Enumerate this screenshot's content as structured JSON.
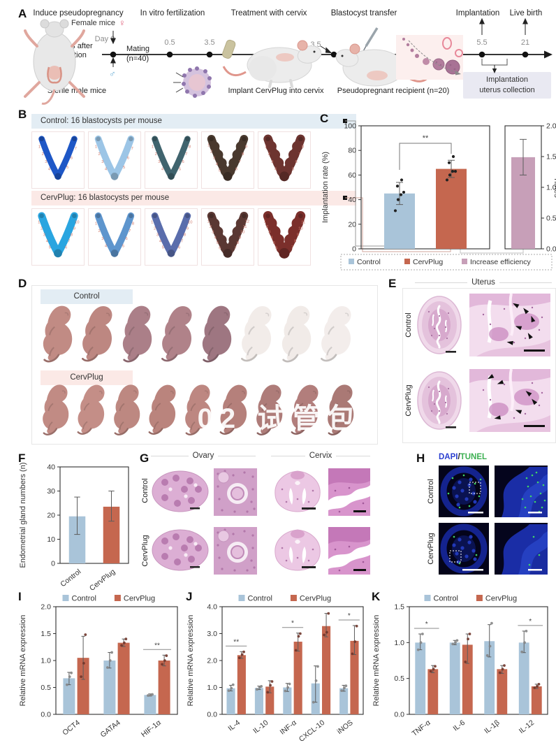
{
  "colors": {
    "control": "#a9c4d9",
    "cervplug": "#c5674f",
    "increase": "#c79fb8",
    "header_blue": "#e3edf4",
    "header_pink": "#fbe9e6",
    "site_number": "#cf7b6e",
    "dapi_blue": "#2b3fd0",
    "tunel_green": "#3db052"
  },
  "watermark": "02 试管包 力",
  "panelA": {
    "label": "A",
    "steps": [
      "Induce pseudopregnancy",
      "In vitro fertilization",
      "Treatment with cervix",
      "Blastocyst transfer",
      "Implantation",
      "Live birth"
    ],
    "female_label": "Female mice",
    "female_symbol": "♀",
    "male_symbol": "♂",
    "day0": "Day 0",
    "castration": "2 weeks after castration",
    "mating_1": "Mating",
    "mating_2": "(n=40)",
    "sterile": "Sterile male mice",
    "ticks": [
      "0.5",
      "3.5",
      "3.5",
      "5.5",
      "21"
    ],
    "implant": "Implant CervPlug into cervix",
    "recipient": "Pseudopregnant recipient (n=20)",
    "collection_1": "Implantation",
    "collection_2": "uterus collection"
  },
  "panelB": {
    "label": "B",
    "control_header": "Control: 16 blastocysts per mouse",
    "cervplug_header": "CervPlug: 16 blastocysts per mouse",
    "control_uteri": [
      {
        "color": "#1e57c6",
        "sites": 7,
        "width": 9
      },
      {
        "color": "#9cc5e6",
        "sites": 7,
        "width": 10
      },
      {
        "color": "#40646e",
        "sites": 8,
        "width": 9
      },
      {
        "color": "#49392e",
        "sites": 9,
        "width": 12
      },
      {
        "color": "#6d3430",
        "sites": 8,
        "width": 13
      }
    ],
    "cervplug_uteri": [
      {
        "color": "#2aa5e0",
        "sites": 10,
        "width": 11
      },
      {
        "color": "#5e95cd",
        "sites": 8,
        "width": 10
      },
      {
        "color": "#5a6dac",
        "sites": 10,
        "width": 10
      },
      {
        "color": "#5a3833",
        "sites": 12,
        "width": 12
      },
      {
        "color": "#7b2f2b",
        "sites": 11,
        "width": 14
      }
    ]
  },
  "panelC": {
    "label": "C"
  },
  "panelD": {
    "label": "D",
    "control": "Control",
    "cervplug": "CervPlug",
    "control_pups": [
      "#c18b84",
      "#bd8781",
      "#ab7f88",
      "#b08289",
      "#9e7681",
      "#f2ece9",
      "#f1ebe8",
      "#f3edeb"
    ],
    "cervplug_pups": [
      "#c18b84",
      "#c48e87",
      "#bd8881",
      "#ba847d",
      "#bd8781",
      "#b5807b",
      "#ae7c79",
      "#b27e7c",
      "#aa7975"
    ]
  },
  "panelE": {
    "label": "E",
    "title": "Uterus",
    "rows": [
      "Control",
      "CervPlug"
    ]
  },
  "panelF": {
    "label": "F"
  },
  "panelG": {
    "label": "G",
    "headers": [
      "Ovary",
      "Cervix"
    ],
    "rows": [
      "Control",
      "CervPlug"
    ]
  },
  "panelH": {
    "label": "H",
    "title_dapi": "DAPI",
    "title_slash": "/",
    "title_tunel": "TUNEL",
    "rows": [
      "Control",
      "CervPlug"
    ]
  },
  "panelI": {
    "label": "I"
  },
  "panelJ": {
    "label": "J"
  },
  "panelK": {
    "label": "K"
  },
  "chart_data": [
    {
      "id": "C",
      "type": "bar",
      "left_axis": {
        "label": "Implantation rate (%)",
        "lim": [
          0,
          100
        ],
        "ticks": [
          0,
          20,
          40,
          60,
          80,
          100
        ]
      },
      "right_axis": {
        "label": "Times",
        "lim": [
          0,
          2
        ],
        "ticks": [
          "0.0",
          "0.5",
          "1.0",
          "1.5",
          "2.0"
        ]
      },
      "groups": [
        {
          "name": "Control",
          "axis": "left",
          "value": 45,
          "err": [
            36,
            54
          ],
          "points": [
            31,
            40,
            44,
            46,
            51,
            56
          ],
          "color": "#a9c4d9"
        },
        {
          "name": "CervPlug",
          "axis": "left",
          "value": 65,
          "err": [
            58,
            72
          ],
          "points": [
            56,
            60,
            63,
            63,
            70,
            75
          ],
          "color": "#c5674f"
        },
        {
          "name": "Increase efficiency",
          "axis": "right",
          "value": 1.49,
          "err": [
            1.2,
            1.78
          ],
          "points": [],
          "color": "#c79fb8"
        }
      ],
      "significance": {
        "between": [
          "Control",
          "CervPlug"
        ],
        "label": "**"
      },
      "legend": [
        {
          "label": "Control",
          "color": "#a9c4d9"
        },
        {
          "label": "CervPlug",
          "color": "#c5674f"
        },
        {
          "label": "Increase efficiency",
          "color": "#c79fb8"
        }
      ]
    },
    {
      "id": "F",
      "type": "bar",
      "ylabel": "Endometrial gland numbers (n)",
      "ylim": [
        0,
        40
      ],
      "yticks": [
        "0",
        "10",
        "20",
        "30",
        "40"
      ],
      "categories": [
        "Control",
        "CervPlug"
      ],
      "values": [
        19.5,
        23.5
      ],
      "errors": [
        [
          12,
          27.5
        ],
        [
          17.5,
          30
        ]
      ],
      "colors": [
        "#a9c4d9",
        "#c5674f"
      ]
    },
    {
      "id": "I",
      "type": "grouped-bar",
      "ylabel": "Relative mRNA expression",
      "ylim": [
        0,
        2
      ],
      "yticks": [
        "0.0",
        "0.5",
        "1.0",
        "1.5",
        "2.0"
      ],
      "categories": [
        "OCT4",
        "GATA4",
        "HIF-1α"
      ],
      "series": [
        {
          "name": "Control",
          "color": "#a9c4d9",
          "values": [
            0.67,
            1.0,
            0.36
          ],
          "errors": [
            [
              0.55,
              0.78
            ],
            [
              0.86,
              1.15
            ],
            [
              0.34,
              0.38
            ]
          ],
          "points": [
            [
              0.55,
              0.7,
              0.77
            ],
            [
              0.87,
              1.0,
              1.15
            ],
            [
              0.35,
              0.36,
              0.37
            ]
          ]
        },
        {
          "name": "CervPlug",
          "color": "#c5674f",
          "values": [
            1.05,
            1.33,
            1.0
          ],
          "errors": [
            [
              0.65,
              1.45
            ],
            [
              1.26,
              1.4
            ],
            [
              0.9,
              1.1
            ]
          ],
          "points": [
            [
              0.7,
              0.95,
              1.48
            ],
            [
              1.28,
              1.33,
              1.4
            ],
            [
              0.93,
              1.0,
              1.09
            ]
          ]
        }
      ],
      "significance": [
        {
          "category": "HIF-1α",
          "label": "**"
        }
      ]
    },
    {
      "id": "J",
      "type": "grouped-bar",
      "ylabel": "Relative mRNA expression",
      "ylim": [
        0,
        4
      ],
      "yticks": [
        "0.0",
        "1.0",
        "2.0",
        "3.0",
        "4.0"
      ],
      "categories": [
        "IL-4",
        "IL-10",
        "INF-α",
        "CXCL-10",
        "iNOS"
      ],
      "series": [
        {
          "name": "Control",
          "color": "#a9c4d9",
          "values": [
            0.97,
            0.98,
            1.0,
            1.15,
            0.97
          ],
          "errors": [
            [
              0.87,
              1.08
            ],
            [
              0.92,
              1.05
            ],
            [
              0.85,
              1.15
            ],
            [
              0.45,
              1.8
            ],
            [
              0.86,
              1.08
            ]
          ],
          "points": [
            [
              0.88,
              0.97,
              1.1
            ],
            [
              0.93,
              1.0,
              1.04
            ],
            [
              0.87,
              1.0,
              1.13
            ],
            [
              0.45,
              1.25,
              1.78
            ],
            [
              0.88,
              0.98,
              1.06
            ]
          ]
        },
        {
          "name": "CervPlug",
          "color": "#c5674f",
          "values": [
            2.2,
            1.03,
            2.7,
            3.28,
            2.73
          ],
          "errors": [
            [
              2.08,
              2.33
            ],
            [
              0.8,
              1.25
            ],
            [
              2.35,
              3.02
            ],
            [
              2.88,
              3.75
            ],
            [
              2.22,
              3.3
            ]
          ],
          "points": [
            [
              2.1,
              2.22,
              2.32
            ],
            [
              0.82,
              1.08,
              1.22
            ],
            [
              2.38,
              2.9,
              3.0
            ],
            [
              2.95,
              3.05,
              3.75
            ],
            [
              2.25,
              2.7,
              3.28
            ]
          ]
        }
      ],
      "significance": [
        {
          "category": "IL-4",
          "label": "**"
        },
        {
          "category": "INF-α",
          "label": "*"
        },
        {
          "category": "iNOS",
          "label": "*"
        }
      ]
    },
    {
      "id": "K",
      "type": "grouped-bar",
      "ylabel": "Relative mRNA expression",
      "ylim": [
        0,
        1.5
      ],
      "yticks": [
        "0.0",
        "0.5",
        "1.0",
        "1.5"
      ],
      "categories": [
        "TNF-α",
        "IL-6",
        "IL-1β",
        "IL-12"
      ],
      "series": [
        {
          "name": "Control",
          "color": "#a9c4d9",
          "values": [
            1.0,
            1.0,
            1.02,
            1.0
          ],
          "errors": [
            [
              0.9,
              1.12
            ],
            [
              0.97,
              1.03
            ],
            [
              0.8,
              1.25
            ],
            [
              0.86,
              1.16
            ]
          ],
          "points": [
            [
              0.9,
              1.0,
              1.12
            ],
            [
              0.98,
              1.0,
              1.03
            ],
            [
              0.82,
              0.95,
              1.27
            ],
            [
              0.87,
              1.0,
              1.16
            ]
          ]
        },
        {
          "name": "CervPlug",
          "color": "#c5674f",
          "values": [
            0.63,
            0.97,
            0.63,
            0.39
          ],
          "errors": [
            [
              0.58,
              0.68
            ],
            [
              0.71,
              1.12
            ],
            [
              0.57,
              0.68
            ],
            [
              0.36,
              0.42
            ]
          ],
          "points": [
            [
              0.6,
              0.63,
              0.67
            ],
            [
              0.73,
              1.05,
              1.12
            ],
            [
              0.58,
              0.63,
              0.68
            ],
            [
              0.37,
              0.39,
              0.42
            ]
          ]
        }
      ],
      "significance": [
        {
          "category": "TNF-α",
          "label": "*"
        },
        {
          "category": "IL-12",
          "label": "*"
        }
      ]
    }
  ]
}
